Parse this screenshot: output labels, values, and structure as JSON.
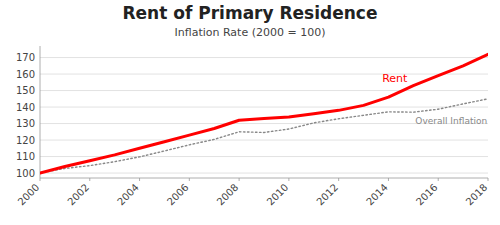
{
  "chart_data": {
    "type": "line",
    "title": "Rent of Primary Residence",
    "subtitle": "Inflation Rate (2000 = 100)",
    "x": [
      2000,
      2001,
      2002,
      2003,
      2004,
      2005,
      2006,
      2007,
      2008,
      2009,
      2010,
      2011,
      2012,
      2013,
      2014,
      2015,
      2016,
      2017,
      2018
    ],
    "series": [
      {
        "name": "Overall Inflation",
        "color": "#888888",
        "line_style": "dotted",
        "values": [
          100,
          102.8,
          104.5,
          106.9,
          109.8,
          113.4,
          117.1,
          120.4,
          125.0,
          124.6,
          126.7,
          130.4,
          132.9,
          135.0,
          137.1,
          136.9,
          138.7,
          141.9,
          145.0
        ]
      },
      {
        "name": "Rent",
        "color": "#ff0000",
        "line_style": "solid",
        "values": [
          100,
          104,
          107.5,
          111,
          115,
          119,
          123,
          127,
          132,
          133,
          134,
          136,
          138,
          141,
          146,
          153,
          159,
          165,
          172
        ]
      }
    ],
    "xlim": [
      2000,
      2018
    ],
    "ylim": [
      97,
      177
    ],
    "xticks": [
      2000,
      2002,
      2004,
      2006,
      2008,
      2010,
      2012,
      2014,
      2016,
      2018
    ],
    "yticks": [
      100,
      110,
      120,
      130,
      140,
      150,
      160,
      170
    ],
    "grid": true
  }
}
